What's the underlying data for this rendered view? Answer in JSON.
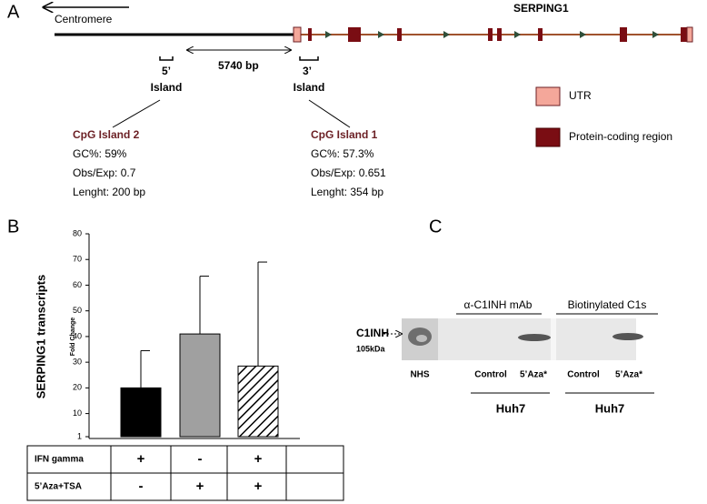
{
  "panel_a": {
    "label": "A",
    "centromere": "Centromere",
    "gene": "SERPING1",
    "island_5": {
      "prime": "5’",
      "word": "Island"
    },
    "island_3": {
      "prime": "3’",
      "word": "Island"
    },
    "distance": "5740 bp",
    "cpg2": {
      "title": "CpG Island 2",
      "gc": "GC%: 59%",
      "obs": "Obs/Exp: 0.7",
      "length": "Lenght: 200 bp"
    },
    "cpg1": {
      "title": "CpG Island 1",
      "gc": "GC%: 57.3%",
      "obs": "Obs/Exp: 0.651",
      "length": "Lenght: 354 bp"
    },
    "legend": [
      "UTR",
      "Protein-coding region"
    ]
  },
  "panel_b": {
    "label": "B",
    "table": {
      "rows": [
        {
          "label": "IFN gamma",
          "cells": [
            "+",
            "-",
            "+"
          ]
        },
        {
          "label": "5’Aza+TSA",
          "cells": [
            "-",
            "+",
            "+"
          ]
        }
      ]
    }
  },
  "chart_data": {
    "type": "bar",
    "y_label": "SERPING1 transcripts",
    "y_sublabel": "Fold Change",
    "categories": [
      null,
      null,
      null
    ],
    "values": [
      20,
      41,
      28.5
    ],
    "errors": [
      14.5,
      22.5,
      40.5
    ],
    "colors": [
      "#000000",
      "#a0a0a0",
      "#ffffff"
    ],
    "hatch": [
      false,
      false,
      true
    ],
    "ylim": [
      1,
      80
    ],
    "yticks": [
      1,
      10,
      20,
      30,
      40,
      50,
      60,
      70,
      80
    ]
  },
  "panel_c": {
    "label": "C",
    "antibody": "α-C1INH mAb",
    "biotin": "Biotinylated C1s",
    "band": "C1INH",
    "size": "105kDa",
    "lanes": [
      "NHS",
      "Control",
      "5’Aza*",
      "Control",
      "5’Aza*"
    ],
    "cells": [
      "Huh7",
      "Huh7"
    ]
  }
}
